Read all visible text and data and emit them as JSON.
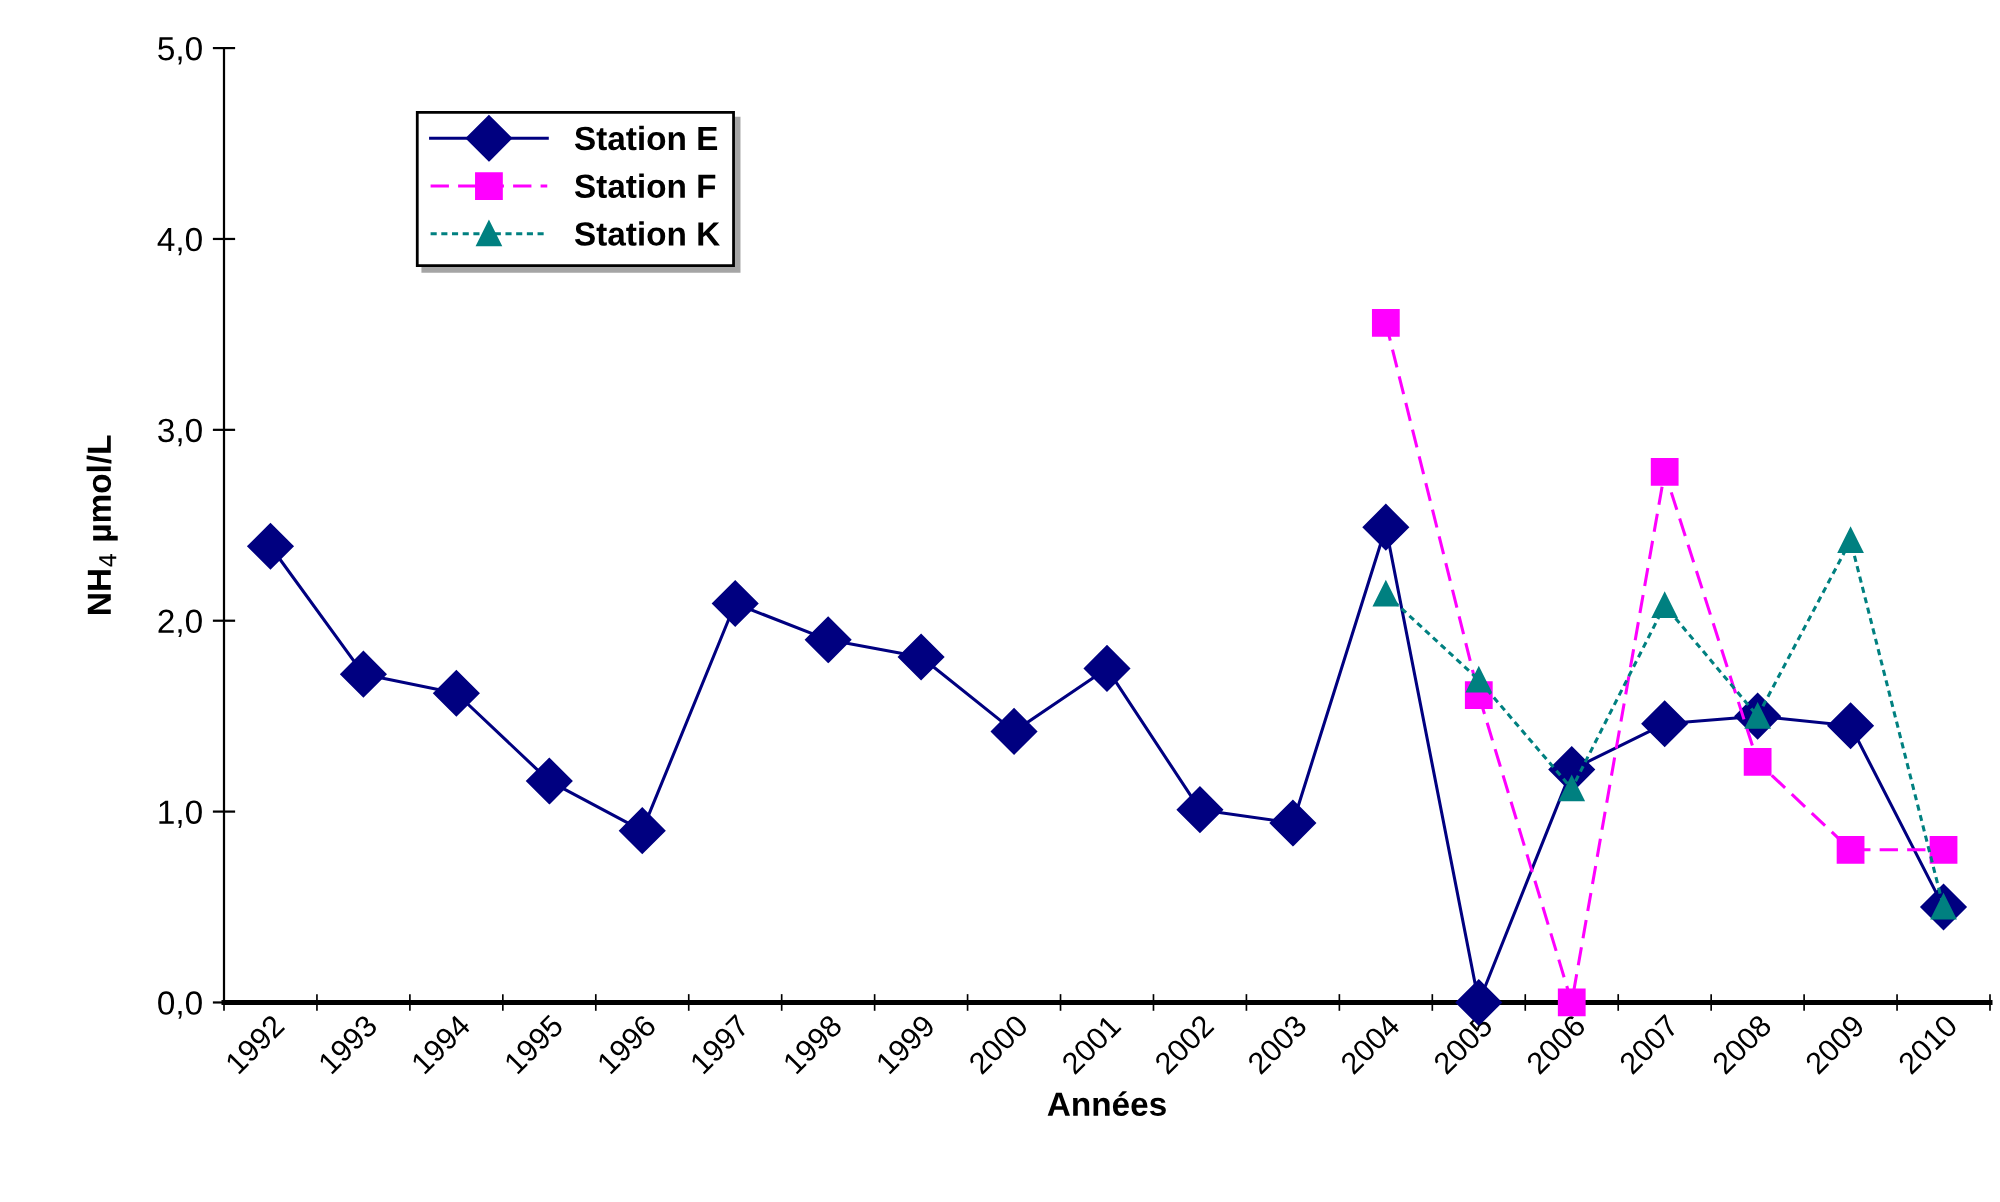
{
  "chart_data": {
    "type": "line",
    "xlabel": "Années",
    "ylabel": "NH$_{4}$ µmol/L",
    "categories": [
      "1992",
      "1993",
      "1994",
      "1995",
      "1996",
      "1997",
      "1998",
      "1999",
      "2000",
      "2001",
      "2002",
      "2003",
      "2004",
      "2005",
      "2006",
      "2007",
      "2008",
      "2009",
      "2010"
    ],
    "ylim": [
      0,
      5
    ],
    "yticks": [
      {
        "value": 0,
        "label": "0,0"
      },
      {
        "value": 1,
        "label": "1,0"
      },
      {
        "value": 2,
        "label": "2,0"
      },
      {
        "value": 3,
        "label": "3,0"
      },
      {
        "value": 4,
        "label": "4,0"
      },
      {
        "value": 5,
        "label": "5,0"
      }
    ],
    "grid": false,
    "legend": "top left",
    "series": [
      {
        "name": "Station E",
        "color": "#000080",
        "marker": "diamond",
        "line_style": "solid",
        "values": [
          2.39,
          1.72,
          1.62,
          1.16,
          0.9,
          2.09,
          1.9,
          1.81,
          1.42,
          1.75,
          1.01,
          0.94,
          2.49,
          0,
          1.22,
          1.46,
          1.5,
          1.45,
          0.5
        ]
      },
      {
        "name": "Station F",
        "color": "#ff00ff",
        "marker": "square",
        "line_style": "dashed",
        "values": [
          null,
          null,
          null,
          null,
          null,
          null,
          null,
          null,
          null,
          null,
          null,
          null,
          3.56,
          1.61,
          0,
          2.78,
          1.26,
          0.8,
          0.8
        ]
      },
      {
        "name": "Station K",
        "color": "#008080",
        "marker": "triangle",
        "line_style": "dotted",
        "values": [
          null,
          null,
          null,
          null,
          null,
          null,
          null,
          null,
          null,
          null,
          null,
          null,
          2.14,
          1.69,
          1.12,
          2.08,
          1.5,
          2.42,
          0.5
        ]
      }
    ]
  }
}
